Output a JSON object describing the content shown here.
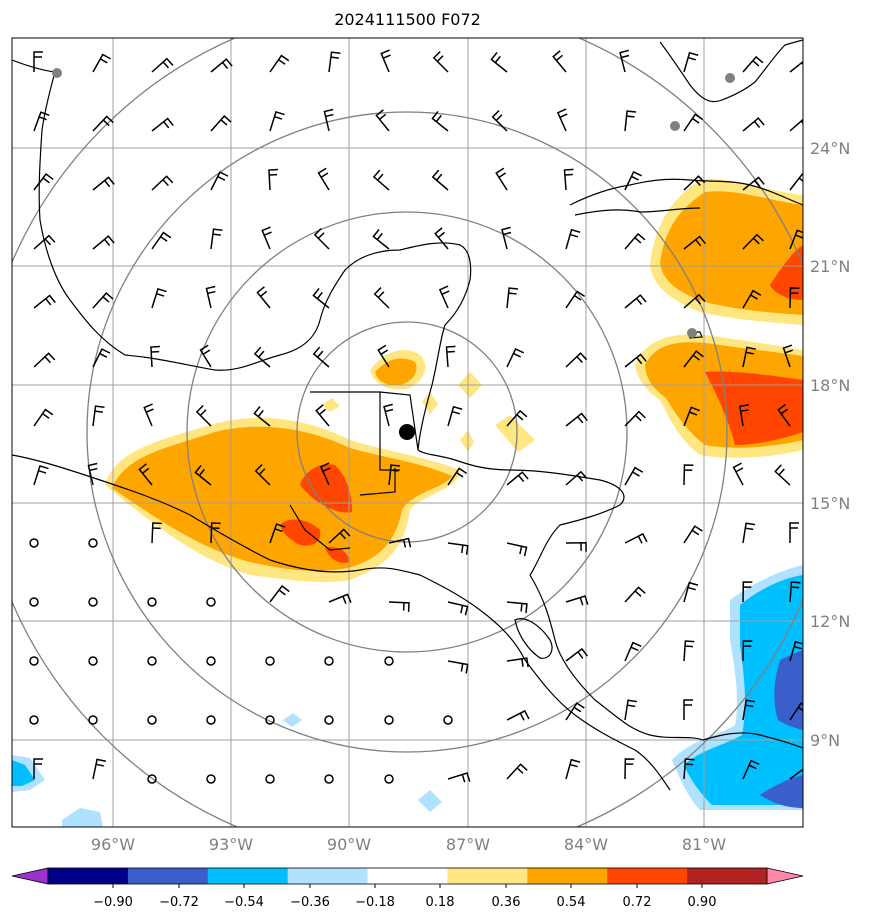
{
  "title": "2024111500 F072",
  "lat_labels": [
    "24°N",
    "21°N",
    "18°N",
    "15°N",
    "12°N",
    "9°N"
  ],
  "lon_labels": [
    "96°W",
    "93°W",
    "90°W",
    "87°W",
    "84°W",
    "81°W"
  ],
  "colorbar": {
    "ticks": [
      "−0.90",
      "−0.72",
      "−0.54",
      "−0.36",
      "−0.18",
      "0.18",
      "0.36",
      "0.54",
      "0.72",
      "0.90"
    ],
    "colors": [
      "#9933cc",
      "#00008b",
      "#3a5fcd",
      "#00bfff",
      "#b0e2ff",
      "#ffffff",
      "#ffe680",
      "#ffa500",
      "#ff4500",
      "#b22222",
      "#ff88aa"
    ]
  },
  "colors": {
    "grid": "#a0a0a0",
    "rings": "#808080",
    "coast": "#000000"
  }
}
